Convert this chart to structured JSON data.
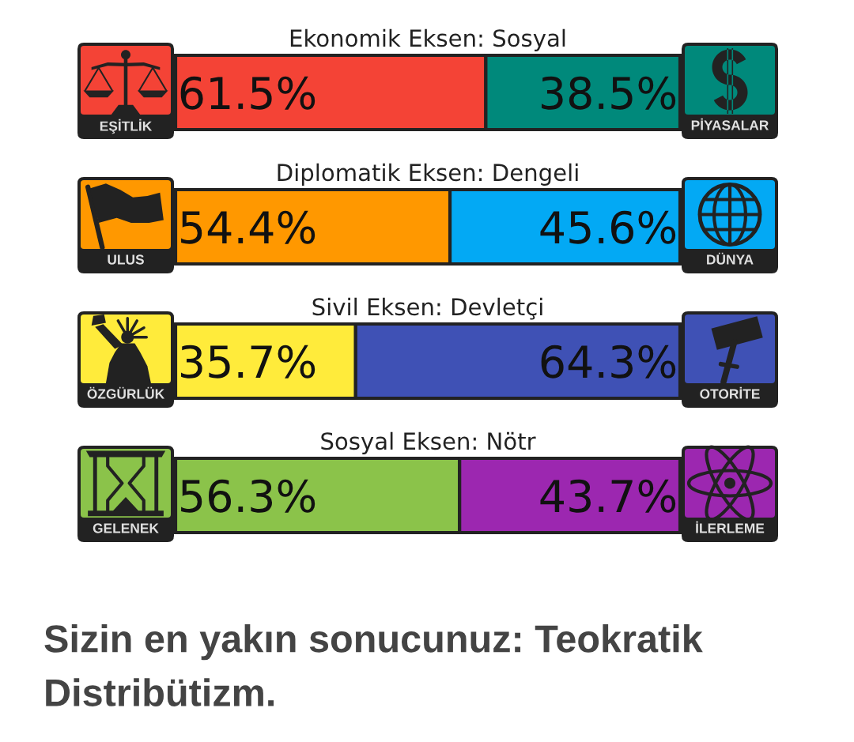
{
  "chart_data": [
    {
      "type": "bar",
      "orientation": "horizontal",
      "stacked": true,
      "title": "Ekonomik Eksen: Sosyal",
      "categories": [
        null
      ],
      "xlim": [
        0,
        100
      ],
      "tick_labels": false,
      "series": [
        {
          "name": "EŞİTLİK",
          "color": "#f44336",
          "values": [
            61.5
          ],
          "value_labels": [
            "61.5%"
          ]
        },
        {
          "name": "PİYASALAR",
          "color": "#00897b",
          "values": [
            38.5
          ],
          "value_labels": [
            "38.5%"
          ]
        }
      ]
    },
    {
      "type": "bar",
      "orientation": "horizontal",
      "stacked": true,
      "title": "Diplomatik Eksen: Dengeli",
      "categories": [
        null
      ],
      "xlim": [
        0,
        100
      ],
      "tick_labels": false,
      "series": [
        {
          "name": "ULUS",
          "color": "#ff9800",
          "values": [
            54.4
          ],
          "value_labels": [
            "54.4%"
          ]
        },
        {
          "name": "DÜNYA",
          "color": "#03a9f4",
          "values": [
            45.6
          ],
          "value_labels": [
            "45.6%"
          ]
        }
      ]
    },
    {
      "type": "bar",
      "orientation": "horizontal",
      "stacked": true,
      "title": "Sivil Eksen: Devletçi",
      "categories": [
        null
      ],
      "xlim": [
        0,
        100
      ],
      "tick_labels": false,
      "series": [
        {
          "name": "ÖZGÜRLÜK",
          "color": "#ffeb3b",
          "values": [
            35.7
          ],
          "value_labels": [
            "35.7%"
          ]
        },
        {
          "name": "OTORİTE",
          "color": "#3f51b5",
          "values": [
            64.3
          ],
          "value_labels": [
            "64.3%"
          ]
        }
      ]
    },
    {
      "type": "bar",
      "orientation": "horizontal",
      "stacked": true,
      "title": "Sosyal Eksen: Nötr",
      "categories": [
        null
      ],
      "xlim": [
        0,
        100
      ],
      "tick_labels": false,
      "series": [
        {
          "name": "GELENEK",
          "color": "#8bc34a",
          "values": [
            56.3
          ],
          "value_labels": [
            "56.3%"
          ]
        },
        {
          "name": "İLERLEME",
          "color": "#9c27b0",
          "values": [
            43.7
          ],
          "value_labels": [
            "43.7%"
          ]
        }
      ],
      "annotations": [
        "Sizin en yakın sonucunuz: Teokratik Distribütizm."
      ]
    }
  ]
}
